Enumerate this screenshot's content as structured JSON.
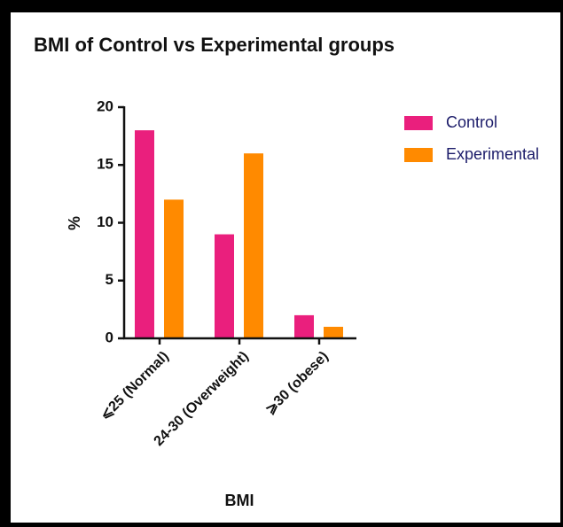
{
  "chart_data": {
    "type": "bar",
    "title": "BMI of Control vs Experimental groups",
    "x_label": "BMI",
    "y_label": "%",
    "categories": [
      "⩽25 (Normal)",
      "24-30 (Overweight)",
      "⩾30 (obese)"
    ],
    "series": [
      {
        "name": "Control",
        "color": "#ea1f7d",
        "values": [
          18,
          9,
          2
        ]
      },
      {
        "name": "Experimental",
        "color": "#ff8a00",
        "values": [
          12,
          16,
          1
        ]
      }
    ],
    "ylim": [
      0,
      20
    ],
    "yticks": [
      0,
      5,
      10,
      15,
      20
    ],
    "legend": "right"
  }
}
